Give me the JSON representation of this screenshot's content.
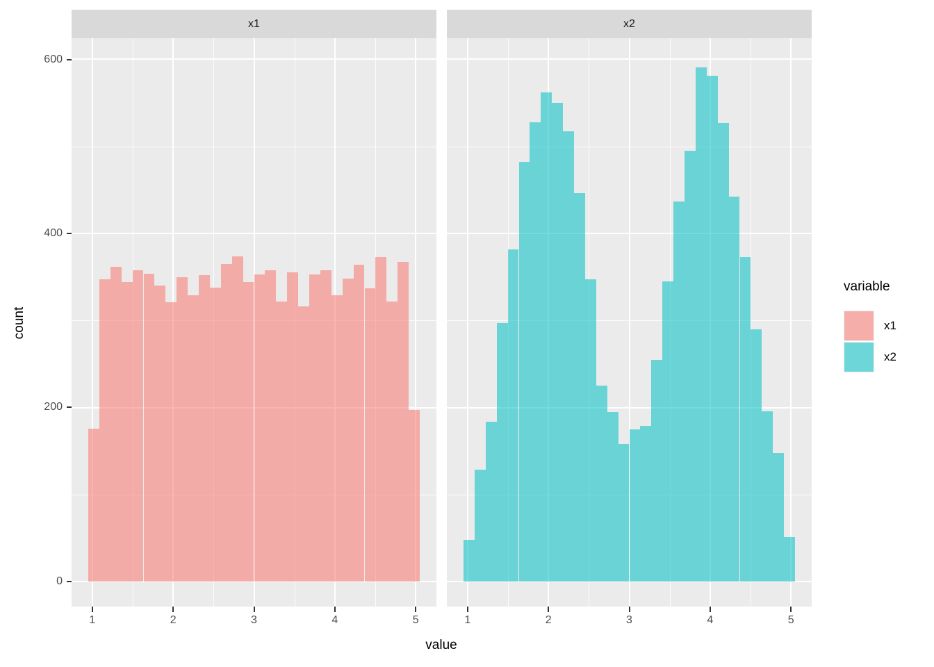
{
  "figure": {
    "kind": "faceted histogram (ggplot2 style)"
  },
  "facets": [
    {
      "label": "x1"
    },
    {
      "label": "x2"
    }
  ],
  "axes": {
    "x": {
      "title": "value",
      "ticks": [
        "1",
        "2",
        "3",
        "4",
        "5"
      ],
      "tick_values": [
        1,
        2,
        3,
        4,
        5
      ],
      "minor_values": [
        1.5,
        2.5,
        3.5,
        4.5
      ],
      "range": [
        0.7435,
        5.2565
      ]
    },
    "y": {
      "title": "count",
      "ticks": [
        "0",
        "200",
        "400",
        "600"
      ],
      "tick_values": [
        0,
        200,
        400,
        600
      ],
      "minor_values": [
        100,
        300,
        500
      ],
      "range": [
        -28.7,
        624.3
      ]
    }
  },
  "legend": {
    "title": "variable",
    "entries": [
      {
        "label": "x1",
        "color": "#F8766D"
      },
      {
        "label": "x2",
        "color": "#00BFC4"
      }
    ]
  },
  "colors": {
    "panel_background": "#EBEBEB",
    "strip_background": "#D9D9D9",
    "gridline": "#FFFFFF",
    "axis_text": "#4D4D4D",
    "x1_fill_rgba": "rgba(248,118,109,0.55)",
    "x2_fill_rgba": "rgba(0,191,196,0.55)"
  },
  "chart_data": {
    "type": "bar",
    "subtype": "histogram-faceted",
    "title": "",
    "xlabel": "value",
    "ylabel": "count",
    "xlim": [
      0.7435,
      5.2565
    ],
    "ylim": [
      -28.7,
      624.3
    ],
    "grid": "white major and minor gridlines on grey panel",
    "legend_position": "right",
    "bin_start": 0.95,
    "bin_width": 0.13667,
    "n_bins": 30,
    "series": [
      {
        "name": "x1",
        "facet": "x1",
        "distribution": "uniform",
        "counts": [
          176,
          347,
          362,
          344,
          358,
          354,
          340,
          321,
          350,
          329,
          352,
          338,
          365,
          374,
          344,
          353,
          358,
          322,
          355,
          316,
          353,
          358,
          329,
          348,
          364,
          337,
          373,
          322,
          367,
          197
        ]
      },
      {
        "name": "x2",
        "facet": "x2",
        "distribution": "bimodal (peaks near 2 and 4)",
        "counts": [
          48,
          129,
          184,
          297,
          382,
          482,
          528,
          562,
          550,
          517,
          446,
          347,
          225,
          195,
          158,
          175,
          179,
          255,
          345,
          437,
          495,
          591,
          581,
          527,
          442,
          373,
          290,
          196,
          148,
          51
        ]
      }
    ]
  }
}
